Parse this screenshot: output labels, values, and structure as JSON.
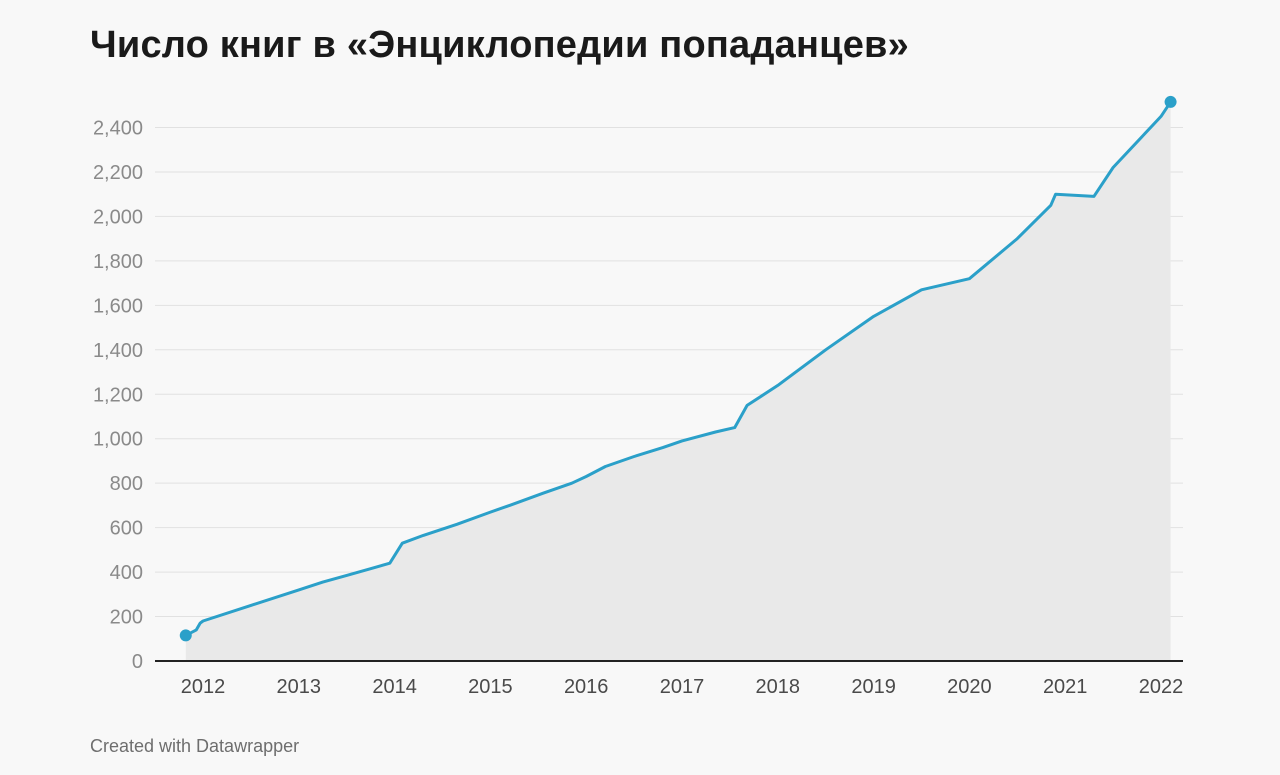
{
  "chart_data": {
    "type": "area",
    "title": "Число книг в «Энциклопедии попаданцев»",
    "xlabel": "",
    "ylabel": "",
    "y_ticks": [
      0,
      200,
      400,
      600,
      800,
      1000,
      1200,
      1400,
      1600,
      1800,
      2000,
      2200,
      2400
    ],
    "y_tick_labels": [
      "0",
      "200",
      "400",
      "600",
      "800",
      "1,000",
      "1,200",
      "1,400",
      "1,600",
      "1,800",
      "2,000",
      "2,200",
      "2,400"
    ],
    "x_ticks": [
      2012,
      2013,
      2014,
      2015,
      2016,
      2017,
      2018,
      2019,
      2020,
      2021,
      2022
    ],
    "x_tick_labels": [
      "2012",
      "2013",
      "2014",
      "2015",
      "2016",
      "2017",
      "2018",
      "2019",
      "2020",
      "2021",
      "2022"
    ],
    "xlim": [
      2011.82,
      2022.1
    ],
    "ylim": [
      0,
      2520
    ],
    "grid": true,
    "line_color": "#2ba0c9",
    "area_color": "#e9e9e9",
    "series": [
      {
        "x": [
          2011.82,
          2011.93,
          2011.97,
          2012.0,
          2012.5,
          2013.0,
          2013.25,
          2013.5,
          2013.75,
          2013.95,
          2014.08,
          2014.3,
          2014.65,
          2015.0,
          2015.2,
          2015.55,
          2015.85,
          2016.0,
          2016.2,
          2016.5,
          2016.8,
          2017.0,
          2017.35,
          2017.55,
          2017.68,
          2018.0,
          2018.5,
          2019.0,
          2019.5,
          2020.0,
          2020.5,
          2020.85,
          2020.9,
          2021.3,
          2021.5,
          2022.0,
          2022.1
        ],
        "y": [
          115,
          140,
          170,
          180,
          250,
          320,
          355,
          385,
          415,
          440,
          530,
          565,
          615,
          670,
          700,
          755,
          800,
          830,
          875,
          920,
          960,
          990,
          1030,
          1050,
          1150,
          1240,
          1400,
          1550,
          1670,
          1720,
          1900,
          2050,
          2100,
          2090,
          2220,
          2450,
          2515
        ]
      }
    ]
  },
  "footer": {
    "credit": "Created with Datawrapper"
  }
}
